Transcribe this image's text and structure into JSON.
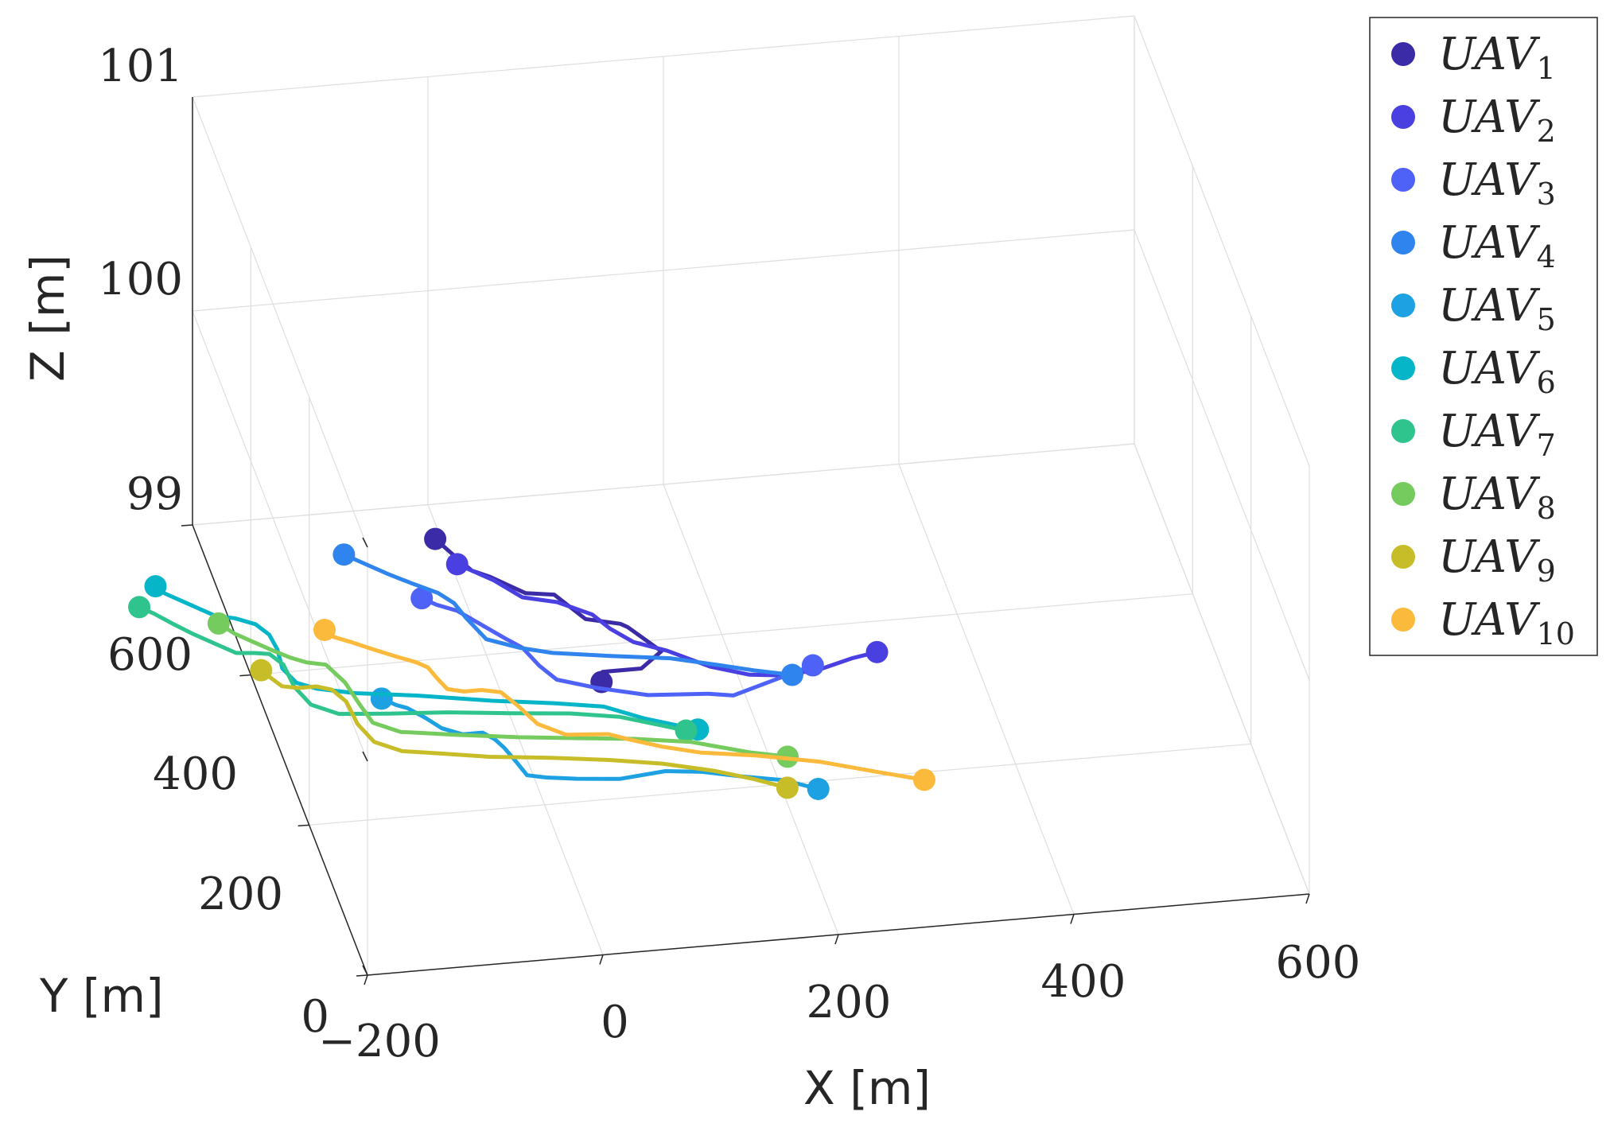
{
  "chart_data": {
    "type": "line3d",
    "title": "",
    "xlabel": "X [m]",
    "ylabel": "Y [m]",
    "zlabel": "Z [m]",
    "xlim": [
      -200,
      600
    ],
    "ylim": [
      0,
      600
    ],
    "zlim": [
      99,
      101
    ],
    "xticks": [
      -200,
      0,
      200,
      400,
      600
    ],
    "xtick_labels": [
      "−200",
      "0",
      "200",
      "400",
      "600"
    ],
    "yticks": [
      0,
      200,
      400,
      600
    ],
    "ytick_labels": [
      "0",
      "200",
      "400",
      "600"
    ],
    "zticks": [
      99,
      100,
      101
    ],
    "ztick_labels": [
      "99",
      "100",
      "101"
    ],
    "grid": true,
    "legend_position": "outside-right",
    "series": [
      {
        "name": "UAV",
        "subscript": "1",
        "color": "#3b2ba6",
        "points": [
          [
            86,
            352
          ],
          [
            90,
            365
          ],
          [
            123,
            365
          ],
          [
            145,
            385
          ],
          [
            125,
            420
          ],
          [
            120,
            425
          ],
          [
            93,
            435
          ],
          [
            75,
            470
          ],
          [
            52,
            475
          ],
          [
            28,
            500
          ],
          [
            15,
            510
          ],
          [
            5,
            532
          ],
          [
            -5,
            555
          ]
        ]
      },
      {
        "name": "UAV",
        "subscript": "2",
        "color": "#4a3fe0",
        "points": [
          [
            5,
            520
          ],
          [
            15,
            510
          ],
          [
            30,
            495
          ],
          [
            48,
            470
          ],
          [
            75,
            460
          ],
          [
            100,
            440
          ],
          [
            110,
            420
          ],
          [
            125,
            400
          ],
          [
            150,
            385
          ],
          [
            180,
            360
          ],
          [
            210,
            345
          ],
          [
            240,
            340
          ],
          [
            272,
            345
          ],
          [
            300,
            355
          ],
          [
            322,
            360
          ]
        ]
      },
      {
        "name": "UAV",
        "subscript": "3",
        "color": "#4f62f8",
        "points": [
          [
            -35,
            480
          ],
          [
            -25,
            470
          ],
          [
            -10,
            460
          ],
          [
            5,
            440
          ],
          [
            20,
            420
          ],
          [
            32,
            405
          ],
          [
            40,
            380
          ],
          [
            50,
            360
          ],
          [
            80,
            345
          ],
          [
            120,
            330
          ],
          [
            170,
            325
          ],
          [
            190,
            320
          ],
          [
            215,
            330
          ],
          [
            240,
            340
          ],
          [
            265,
            350
          ]
        ]
      },
      {
        "name": "UAV",
        "subscript": "4",
        "color": "#2f84ee",
        "points": [
          [
            -85,
            545
          ],
          [
            -70,
            530
          ],
          [
            -55,
            515
          ],
          [
            -38,
            500
          ],
          [
            -20,
            485
          ],
          [
            -10,
            470
          ],
          [
            -5,
            450
          ],
          [
            5,
            420
          ],
          [
            30,
            405
          ],
          [
            55,
            395
          ],
          [
            100,
            385
          ],
          [
            150,
            375
          ],
          [
            190,
            360
          ],
          [
            215,
            350
          ],
          [
            245,
            340
          ]
        ]
      },
      {
        "name": "UAV",
        "subscript": "5",
        "color": "#1da1e2",
        "points": [
          [
            -100,
            355
          ],
          [
            -90,
            345
          ],
          [
            -82,
            340
          ],
          [
            -70,
            325
          ],
          [
            -60,
            310
          ],
          [
            -45,
            300
          ],
          [
            -28,
            300
          ],
          [
            -20,
            290
          ],
          [
            -15,
            278
          ],
          [
            -10,
            260
          ],
          [
            -5,
            240
          ],
          [
            10,
            235
          ],
          [
            35,
            230
          ],
          [
            70,
            225
          ],
          [
            110,
            230
          ],
          [
            140,
            225
          ],
          [
            170,
            215
          ],
          [
            205,
            205
          ],
          [
            230,
            190
          ]
        ]
      },
      {
        "name": "UAV",
        "subscript": "6",
        "color": "#06b5c8",
        "points": [
          [
            -250,
            525
          ],
          [
            -245,
            515
          ],
          [
            -230,
            500
          ],
          [
            -210,
            480
          ],
          [
            -195,
            475
          ],
          [
            -180,
            465
          ],
          [
            -172,
            450
          ],
          [
            -170,
            430
          ],
          [
            -172,
            405
          ],
          [
            -165,
            385
          ],
          [
            -150,
            375
          ],
          [
            -120,
            365
          ],
          [
            -70,
            355
          ],
          [
            -10,
            340
          ],
          [
            40,
            330
          ],
          [
            80,
            320
          ],
          [
            110,
            300
          ],
          [
            130,
            290
          ],
          [
            150,
            280
          ]
        ]
      },
      {
        "name": "UAV",
        "subscript": "7",
        "color": "#2fc48e",
        "points": [
          [
            -270,
            500
          ],
          [
            -260,
            490
          ],
          [
            -248,
            475
          ],
          [
            -235,
            460
          ],
          [
            -220,
            445
          ],
          [
            -205,
            430
          ],
          [
            -190,
            428
          ],
          [
            -178,
            425
          ],
          [
            -170,
            410
          ],
          [
            -168,
            380
          ],
          [
            -160,
            355
          ],
          [
            -140,
            340
          ],
          [
            -100,
            335
          ],
          [
            -50,
            330
          ],
          [
            0,
            322
          ],
          [
            50,
            315
          ],
          [
            90,
            305
          ],
          [
            120,
            290
          ],
          [
            140,
            280
          ]
        ]
      },
      {
        "name": "UAV",
        "subscript": "8",
        "color": "#76cb5f",
        "points": [
          [
            -210,
            470
          ],
          [
            -200,
            455
          ],
          [
            -190,
            445
          ],
          [
            -175,
            430
          ],
          [
            -162,
            418
          ],
          [
            -150,
            410
          ],
          [
            -135,
            405
          ],
          [
            -125,
            380
          ],
          [
            -120,
            350
          ],
          [
            -115,
            325
          ],
          [
            -95,
            310
          ],
          [
            -50,
            300
          ],
          [
            0,
            290
          ],
          [
            50,
            282
          ],
          [
            95,
            275
          ],
          [
            140,
            265
          ],
          [
            185,
            245
          ],
          [
            215,
            235
          ]
        ]
      },
      {
        "name": "UAV",
        "subscript": "9",
        "color": "#c7bd28",
        "points": [
          [
            -190,
            405
          ],
          [
            -185,
            395
          ],
          [
            -178,
            382
          ],
          [
            -165,
            378
          ],
          [
            -150,
            378
          ],
          [
            -138,
            372
          ],
          [
            -130,
            355
          ],
          [
            -128,
            325
          ],
          [
            -120,
            300
          ],
          [
            -100,
            285
          ],
          [
            -70,
            278
          ],
          [
            -30,
            268
          ],
          [
            20,
            260
          ],
          [
            70,
            250
          ],
          [
            110,
            240
          ],
          [
            150,
            225
          ],
          [
            180,
            210
          ],
          [
            205,
            195
          ]
        ]
      },
      {
        "name": "UAV",
        "subscript": "10",
        "color": "#fbba3c",
        "points": [
          [
            -125,
            450
          ],
          [
            -120,
            440
          ],
          [
            -108,
            432
          ],
          [
            -92,
            420
          ],
          [
            -75,
            408
          ],
          [
            -60,
            398
          ],
          [
            -52,
            390
          ],
          [
            -48,
            375
          ],
          [
            -43,
            360
          ],
          [
            -30,
            355
          ],
          [
            -15,
            355
          ],
          [
            0,
            350
          ],
          [
            10,
            330
          ],
          [
            20,
            305
          ],
          [
            40,
            288
          ],
          [
            75,
            284
          ],
          [
            90,
            275
          ],
          [
            115,
            262
          ],
          [
            145,
            250
          ],
          [
            190,
            240
          ],
          [
            240,
            225
          ],
          [
            285,
            205
          ],
          [
            320,
            190
          ]
        ]
      }
    ]
  }
}
